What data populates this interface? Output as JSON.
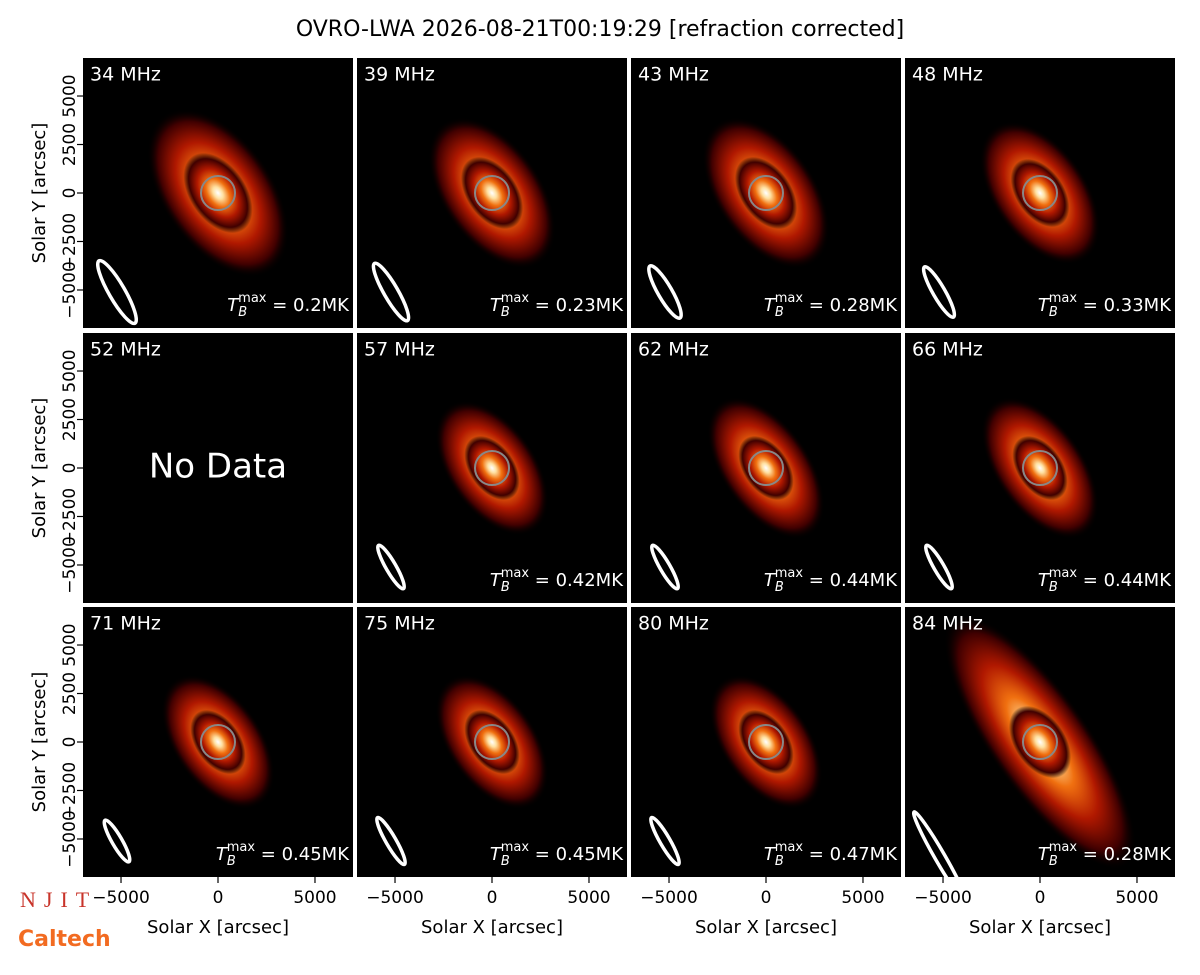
{
  "chart_data": {
    "type": "image_grid",
    "title": "OVRO-LWA 2026-08-21T00:19:29 [refraction corrected]",
    "xlabel": "Solar X [arcsec]",
    "ylabel": "Solar Y [arcsec]",
    "xlim": [
      -6960,
      6960
    ],
    "ylim": [
      -6960,
      6960
    ],
    "xticks": [
      {
        "value": -5000,
        "label": "−5000"
      },
      0,
      5000
    ],
    "yticks": [
      {
        "value": -5000,
        "label": "−5000"
      },
      {
        "value": -2500,
        "label": "−2500"
      },
      0,
      2500,
      5000
    ],
    "annotation_symbol": {
      "base": "T",
      "sub": "B",
      "sup": "max"
    },
    "panels": [
      {
        "label": "34 MHz",
        "annotation": " = 0.2MK"
      },
      {
        "label": "39 MHz",
        "annotation": " = 0.23MK"
      },
      {
        "label": "43 MHz",
        "annotation": " = 0.28MK"
      },
      {
        "label": "48 MHz",
        "annotation": " = 0.33MK"
      },
      {
        "label": "52 MHz",
        "text": "No Data"
      },
      {
        "label": "57 MHz",
        "annotation": " = 0.42MK"
      },
      {
        "label": "62 MHz",
        "annotation": " = 0.44MK"
      },
      {
        "label": "66 MHz",
        "annotation": " = 0.44MK"
      },
      {
        "label": "71 MHz",
        "annotation": " = 0.45MK"
      },
      {
        "label": "75 MHz",
        "annotation": " = 0.45MK"
      },
      {
        "label": "80 MHz",
        "annotation": " = 0.47MK"
      },
      {
        "label": "84 MHz",
        "annotation": " = 0.28MK"
      }
    ]
  },
  "logos": [
    "NJIT",
    "Caltech"
  ]
}
